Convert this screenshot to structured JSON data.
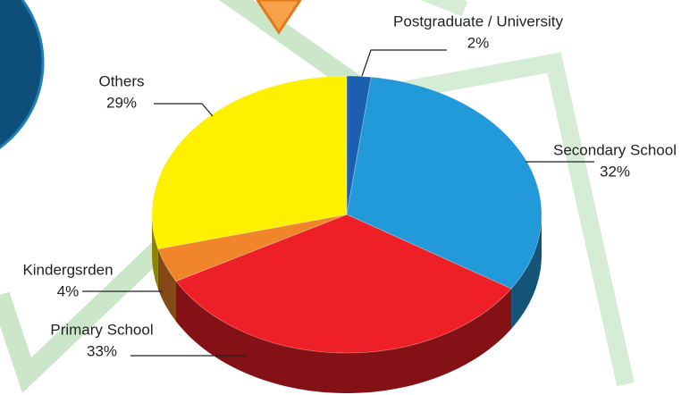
{
  "chart_data": {
    "type": "pie",
    "labels": [
      "Postgraduate / University",
      "Secondary School",
      "Primary School",
      "Kindergsrden",
      "Others"
    ],
    "values": [
      2,
      32,
      33,
      4,
      29
    ],
    "value_labels": [
      "2%",
      "32%",
      "33%",
      "4%",
      "29%"
    ],
    "colors": [
      "#1c5fae",
      "#2299d8",
      "#ee1f26",
      "#f0852a",
      "#fff000"
    ]
  }
}
